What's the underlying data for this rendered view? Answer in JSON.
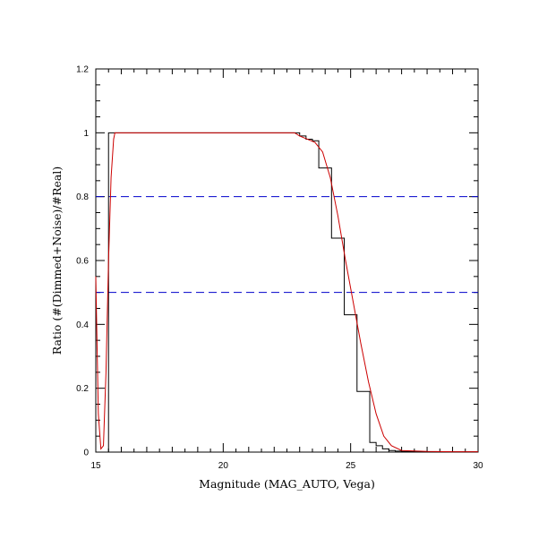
{
  "chart_data": {
    "type": "line",
    "xlabel": "Magnitude (MAG_AUTO, Vega)",
    "ylabel": "Ratio (#(Dimmed+Noise)/#Real)",
    "xlim": [
      15,
      30
    ],
    "ylim": [
      0,
      1.2
    ],
    "x_ticks": [
      15,
      20,
      25,
      30
    ],
    "x_tick_labels": [
      "15",
      "20",
      "25",
      "30"
    ],
    "y_ticks": [
      0,
      0.2,
      0.4,
      0.6,
      0.8,
      1,
      1.2
    ],
    "y_tick_labels": [
      "0",
      "0.2",
      "0.4",
      "0.6",
      "0.8",
      "1",
      "1.2"
    ],
    "grid": false,
    "reference_lines": [
      {
        "axis": "y",
        "value": 0.8,
        "style": "dashed",
        "color": "#0000cc"
      },
      {
        "axis": "y",
        "value": 0.5,
        "style": "dashed",
        "color": "#0000cc"
      }
    ],
    "series": [
      {
        "kind": "histogram-step",
        "color": "#000000",
        "bin_width": 0.25,
        "bin_start": 15.5,
        "values": [
          1,
          1,
          1,
          1,
          1,
          1,
          1,
          1,
          1,
          1,
          1,
          1,
          1,
          1,
          1,
          1,
          1,
          1,
          1,
          1,
          1,
          1,
          1,
          1,
          1,
          1,
          1,
          1,
          1,
          1,
          0.99,
          0.98,
          0.975,
          0.89,
          0.89,
          0.67,
          0.67,
          0.43,
          0.43,
          0.19,
          0.19,
          0.03,
          0.02,
          0.01,
          0.005,
          0.003,
          0.002,
          0.002,
          0.001,
          0.001,
          0.001,
          0.001,
          0.001,
          0.001,
          0.001,
          0.001,
          0.001,
          0.001
        ]
      },
      {
        "kind": "fit-line",
        "color": "#cc0000",
        "x": [
          15.0,
          15.1,
          15.2,
          15.3,
          15.4,
          15.5,
          15.6,
          15.7,
          15.75,
          16.0,
          17.0,
          18.0,
          19.0,
          20.0,
          21.0,
          22.0,
          22.8,
          23.0,
          23.3,
          23.6,
          23.9,
          24.2,
          24.5,
          24.8,
          25.1,
          25.4,
          25.7,
          26.0,
          26.3,
          26.6,
          27.0,
          28.0,
          29.0,
          30.0
        ],
        "y": [
          0.55,
          0.12,
          0.01,
          0.02,
          0.25,
          0.6,
          0.86,
          0.98,
          1.0,
          1.0,
          1.0,
          1.0,
          1.0,
          1.0,
          1.0,
          1.0,
          1.0,
          0.99,
          0.98,
          0.97,
          0.94,
          0.86,
          0.74,
          0.6,
          0.47,
          0.34,
          0.22,
          0.12,
          0.05,
          0.02,
          0.005,
          0.002,
          0.001,
          0.001
        ]
      }
    ]
  }
}
